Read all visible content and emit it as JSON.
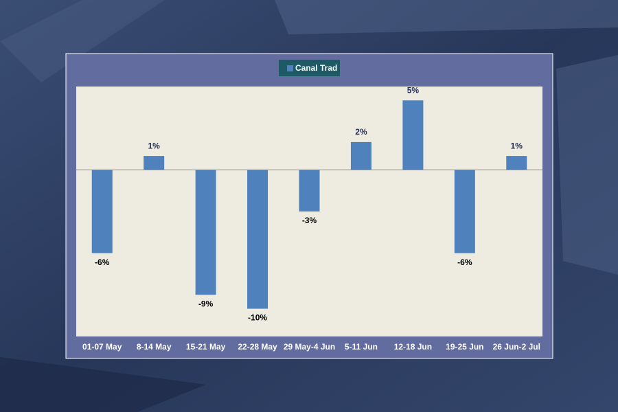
{
  "chart_data": {
    "type": "bar",
    "categories": [
      "01-07 May",
      "8-14 May",
      "15-21 May",
      "22-28 May",
      "29 May-4 Jun",
      "5-11 Jun",
      "12-18 Jun",
      "19-25 Jun",
      "26 Jun-2 Jul"
    ],
    "series": [
      {
        "name": "Canal Trad",
        "color": "#4f81bd",
        "values": [
          -6,
          1,
          -9,
          -10,
          -3,
          2,
          5,
          -6,
          1
        ],
        "value_labels": [
          "-6%",
          "1%",
          "-9%",
          "-10%",
          "-3%",
          "2%",
          "5%",
          "-6%",
          "1%"
        ]
      }
    ],
    "ylim": [
      -12,
      6
    ],
    "legend": "top"
  }
}
